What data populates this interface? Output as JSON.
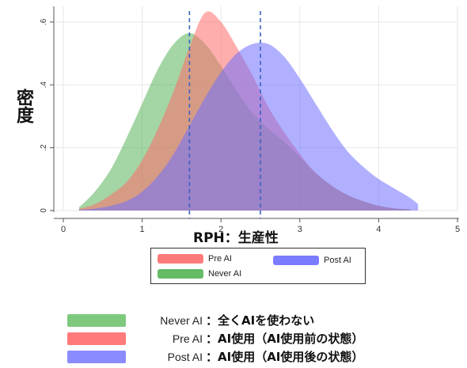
{
  "chart_data": {
    "type": "area",
    "title": "",
    "xlabel": "RPH：生産性",
    "ylabel": "密度",
    "xlim": [
      0,
      5
    ],
    "ylim": [
      0,
      0.65
    ],
    "x_ticks": [
      "0",
      "1",
      "2",
      "3",
      "4",
      "5"
    ],
    "y_ticks": [
      "0",
      ".2",
      ".4",
      ".6"
    ],
    "grid": true,
    "reference_lines": [
      {
        "x": 1.6,
        "style": "dashed"
      },
      {
        "x": 2.5,
        "style": "dashed"
      }
    ],
    "series": [
      {
        "name": "Never AI",
        "color": "#59b359",
        "x": [
          0.2,
          0.4,
          0.6,
          0.8,
          1.0,
          1.2,
          1.4,
          1.6,
          1.8,
          2.0,
          2.2,
          2.4,
          2.6,
          2.8,
          3.0,
          3.2,
          3.4,
          3.6,
          3.8,
          4.0,
          4.2,
          4.4
        ],
        "y": [
          0.01,
          0.06,
          0.13,
          0.23,
          0.34,
          0.45,
          0.53,
          0.565,
          0.53,
          0.46,
          0.38,
          0.31,
          0.26,
          0.22,
          0.17,
          0.12,
          0.08,
          0.05,
          0.03,
          0.015,
          0.007,
          0.004
        ]
      },
      {
        "name": "Pre AI",
        "color": "#ff6b6b",
        "x": [
          0.2,
          0.4,
          0.6,
          0.8,
          1.0,
          1.2,
          1.4,
          1.6,
          1.8,
          2.0,
          2.2,
          2.4,
          2.6,
          2.8,
          3.0,
          3.2,
          3.4,
          3.6,
          3.8,
          4.0,
          4.2,
          4.4
        ],
        "y": [
          0.005,
          0.02,
          0.05,
          0.09,
          0.16,
          0.26,
          0.38,
          0.52,
          0.63,
          0.6,
          0.52,
          0.43,
          0.33,
          0.25,
          0.18,
          0.12,
          0.08,
          0.05,
          0.03,
          0.015,
          0.007,
          0.003
        ]
      },
      {
        "name": "Post AI",
        "color": "#7070ff",
        "x": [
          0.2,
          0.4,
          0.6,
          0.8,
          1.0,
          1.2,
          1.4,
          1.6,
          1.8,
          2.0,
          2.2,
          2.4,
          2.6,
          2.8,
          3.0,
          3.2,
          3.4,
          3.6,
          3.8,
          4.0,
          4.2,
          4.4,
          4.5
        ],
        "y": [
          0.002,
          0.006,
          0.015,
          0.03,
          0.06,
          0.11,
          0.18,
          0.27,
          0.36,
          0.44,
          0.5,
          0.53,
          0.53,
          0.49,
          0.42,
          0.34,
          0.26,
          0.19,
          0.14,
          0.1,
          0.07,
          0.04,
          0.02
        ]
      }
    ],
    "inner_legend": {
      "items": [
        {
          "label": "Pre AI",
          "color": "#ff7b7b"
        },
        {
          "label": "Post AI",
          "color": "#7b7bff"
        },
        {
          "label": "Never AI",
          "color": "#66bb66"
        }
      ]
    },
    "bottom_legend": [
      {
        "name": "Never AI",
        "desc": "：全くAIを使わない",
        "color": "#7fc97f"
      },
      {
        "name": "Pre AI",
        "desc": "：AI使用（AI使用前の状態）",
        "color": "#ff7b7b"
      },
      {
        "name": "Post AI",
        "desc": "：AI使用（AI使用後の状態）",
        "color": "#8b8bff"
      }
    ]
  }
}
